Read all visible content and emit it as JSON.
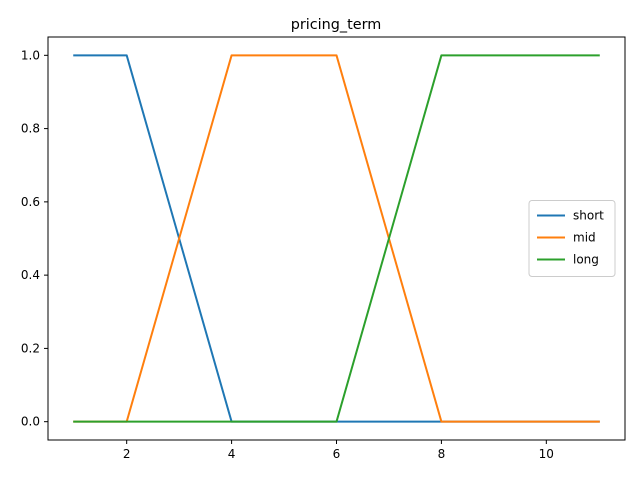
{
  "chart_data": {
    "type": "line",
    "title": "pricing_term",
    "xlabel": "",
    "ylabel": "",
    "x": [
      1,
      2,
      3,
      4,
      5,
      6,
      7,
      8,
      9,
      10,
      11
    ],
    "xlim": [
      0.5,
      11.5
    ],
    "ylim": [
      -0.05,
      1.05
    ],
    "xticks": [
      2,
      4,
      6,
      8,
      10
    ],
    "yticks": [
      0.0,
      0.2,
      0.4,
      0.6,
      0.8,
      1.0
    ],
    "xtick_labels": [
      "2",
      "4",
      "6",
      "8",
      "10"
    ],
    "ytick_labels": [
      "0.0",
      "0.2",
      "0.4",
      "0.6",
      "0.8",
      "1.0"
    ],
    "grid": false,
    "legend_position": "center-right",
    "series": [
      {
        "name": "short",
        "color": "#1f77b4",
        "values": [
          1,
          1,
          0.5,
          0,
          0,
          0,
          0,
          0,
          0,
          0,
          0
        ]
      },
      {
        "name": "mid",
        "color": "#ff7f0e",
        "values": [
          0,
          0,
          0.5,
          1,
          1,
          1,
          0.5,
          0,
          0,
          0,
          0
        ]
      },
      {
        "name": "long",
        "color": "#2ca02c",
        "values": [
          0,
          0,
          0,
          0,
          0,
          0,
          0.5,
          1,
          1,
          1,
          1
        ]
      }
    ]
  }
}
